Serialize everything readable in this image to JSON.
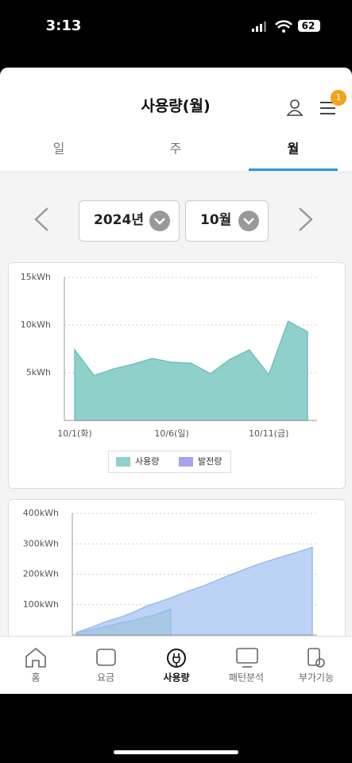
{
  "status_bar": {
    "time": "3:13",
    "battery": "62"
  },
  "header": {
    "title": "사용량(월)",
    "badge": "1"
  },
  "tabs": [
    "일",
    "주",
    "월"
  ],
  "active_tab": 2,
  "selectors": [
    "2024년",
    "10월"
  ],
  "chart_data": [
    {
      "type": "area",
      "categories": [
        "10/1(화)",
        null,
        null,
        null,
        null,
        "10/6(일)",
        null,
        null,
        null,
        null,
        "10/11(금)",
        null,
        null
      ],
      "series": [
        {
          "name": "사용량",
          "color": "#8fd0cb",
          "values": [
            7.4,
            4.7,
            5.4,
            5.9,
            6.5,
            6.1,
            6.0,
            4.9,
            6.4,
            7.4,
            4.8,
            10.4,
            9.3
          ]
        },
        {
          "name": "발전량",
          "color": "#a7a3ee",
          "values": [
            null,
            null,
            null,
            null,
            null,
            null,
            null,
            null,
            null,
            null,
            null,
            null,
            null
          ]
        }
      ],
      "ylim": [
        0,
        15
      ],
      "yticks": [
        {
          "value": 5,
          "label": "5kWh"
        },
        {
          "value": 10,
          "label": "10kWh"
        },
        {
          "value": 15,
          "label": "15kWh"
        }
      ],
      "grid": true
    },
    {
      "type": "area",
      "series": [
        {
          "color": "#bdd3f6",
          "values": [
            8,
            17,
            26,
            36,
            46,
            54,
            62,
            72,
            84,
            96,
            104,
            113,
            122,
            132,
            142,
            151,
            160,
            170,
            181,
            192,
            202,
            212,
            222,
            231,
            240,
            248,
            256,
            264,
            272,
            280,
            288
          ]
        },
        {
          "color": "#a6c9e4",
          "values": [
            7.4,
            12.1,
            17.5,
            23.4,
            29.9,
            36.0,
            42.0,
            46.9,
            53.3,
            60.7,
            65.5,
            75.9,
            85.2
          ]
        }
      ],
      "ylim": [
        0,
        400
      ],
      "yticks": [
        {
          "value": 100,
          "label": "100kWh"
        },
        {
          "value": 200,
          "label": "200kWh"
        },
        {
          "value": 300,
          "label": "300kWh"
        },
        {
          "value": 400,
          "label": "400kWh"
        }
      ],
      "grid": true
    }
  ],
  "nav": [
    "홈",
    "요금",
    "사용량",
    "패턴분석",
    "부가기능"
  ],
  "active_nav": 2
}
